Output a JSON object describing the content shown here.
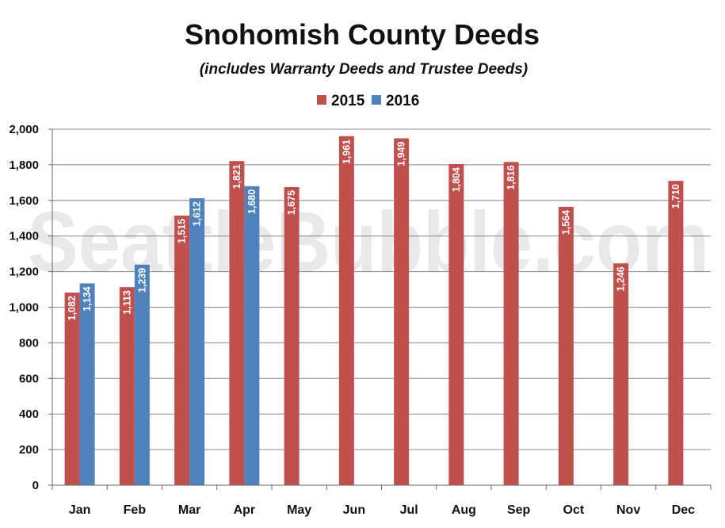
{
  "chart_data": {
    "type": "bar",
    "title": "Snohomish County Deeds",
    "subtitle": "(includes Warranty Deeds and Trustee Deeds)",
    "watermark": "SeattleBubble.com",
    "categories": [
      "Jan",
      "Feb",
      "Mar",
      "Apr",
      "May",
      "Jun",
      "Jul",
      "Aug",
      "Sep",
      "Oct",
      "Nov",
      "Dec"
    ],
    "series": [
      {
        "name": "2015",
        "color": "#c0504d",
        "values": [
          1082,
          1113,
          1515,
          1821,
          1675,
          1961,
          1949,
          1804,
          1816,
          1564,
          1246,
          1710
        ],
        "labels": [
          "1,082",
          "1,113",
          "1,515",
          "1,821",
          "1,675",
          "1,961",
          "1,949",
          "1,804",
          "1,816",
          "1,564",
          "1,246",
          "1,710"
        ]
      },
      {
        "name": "2016",
        "color": "#4f81bd",
        "values": [
          1134,
          1239,
          1612,
          1680,
          null,
          null,
          null,
          null,
          null,
          null,
          null,
          null
        ],
        "labels": [
          "1,134",
          "1,239",
          "1,612",
          "1,680",
          "",
          "",
          "",
          "",
          "",
          "",
          "",
          ""
        ]
      }
    ],
    "ylim": [
      0,
      2000
    ],
    "yticks": [
      0,
      200,
      400,
      600,
      800,
      1000,
      1200,
      1400,
      1600,
      1800,
      2000
    ],
    "ytick_labels": [
      "0",
      "200",
      "400",
      "600",
      "800",
      "1,000",
      "1,200",
      "1,400",
      "1,600",
      "1,800",
      "2,000"
    ],
    "xlabel": "",
    "ylabel": "",
    "grid": true,
    "legend_position": "top-center"
  }
}
